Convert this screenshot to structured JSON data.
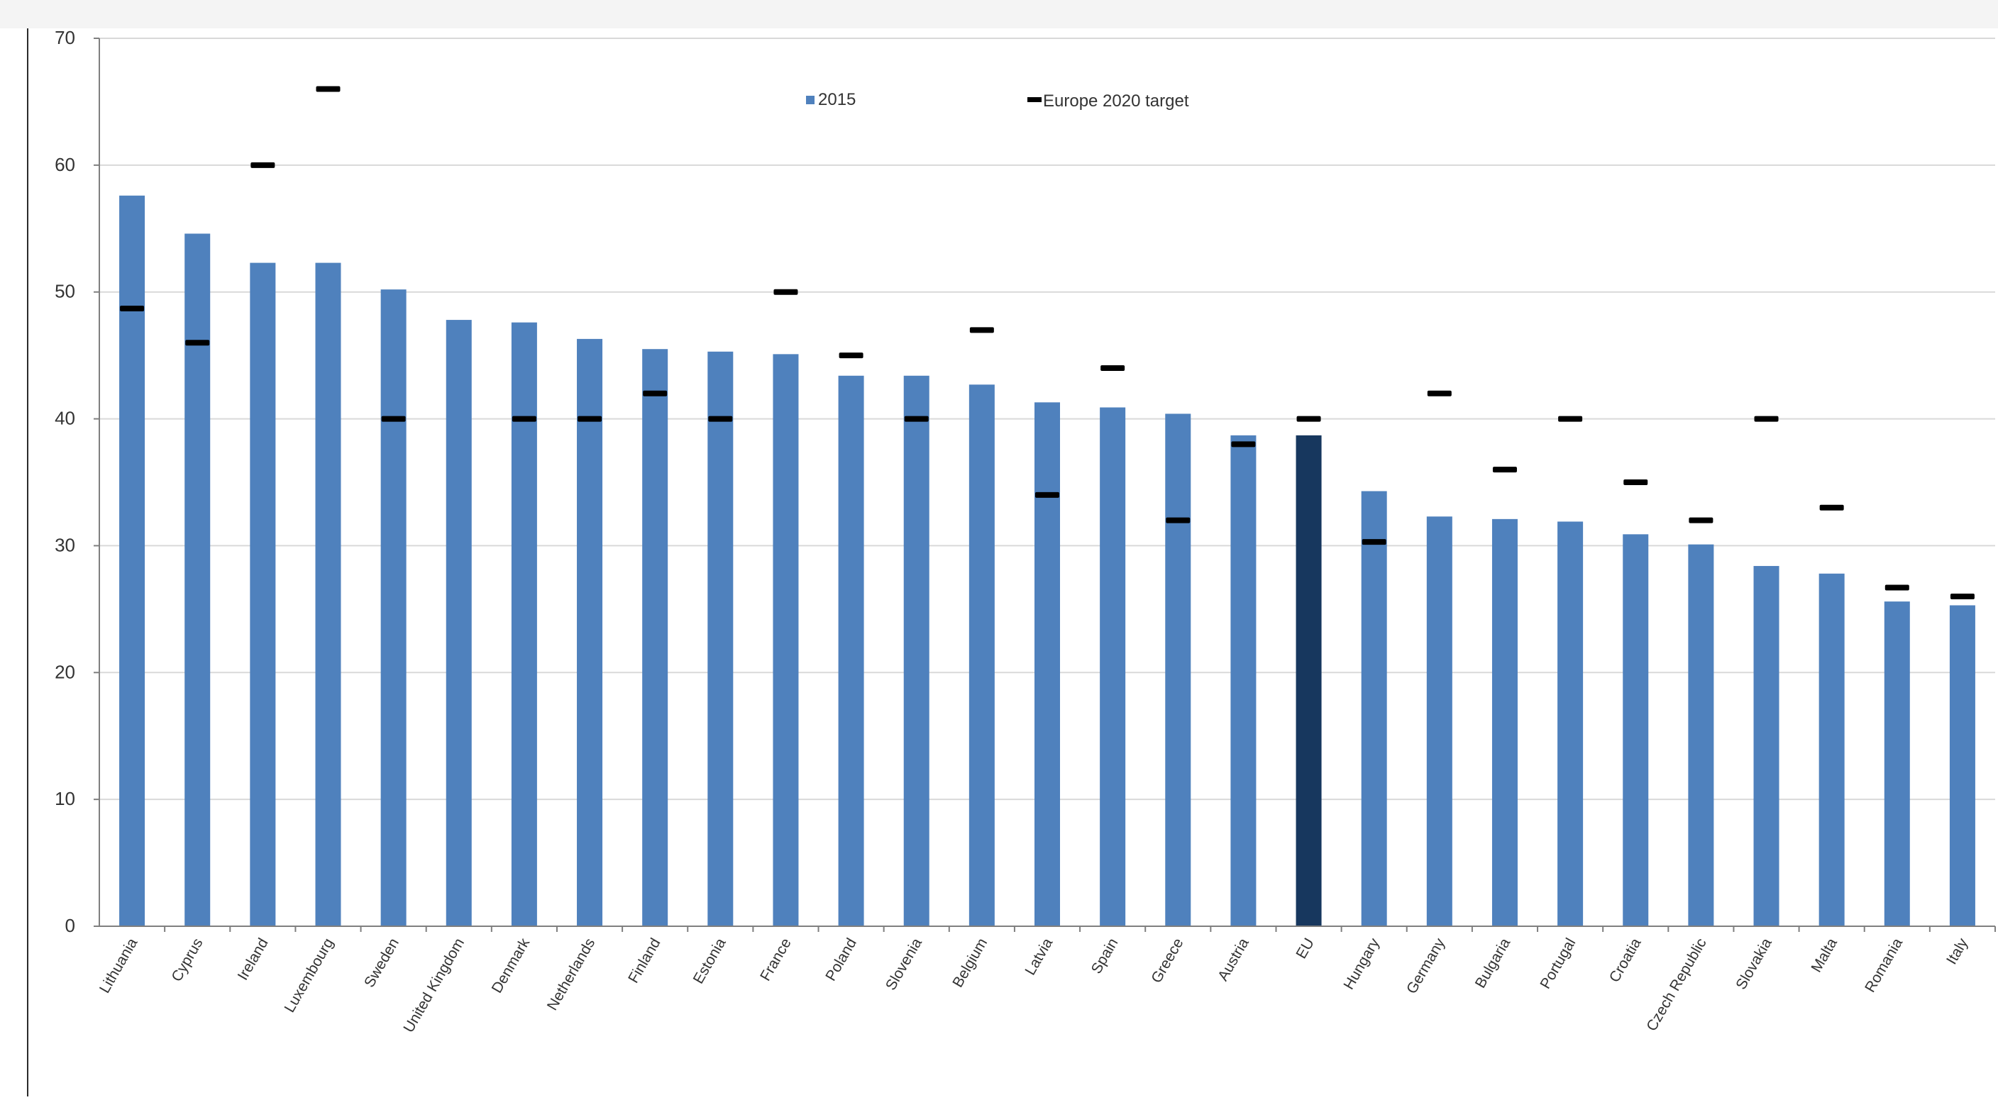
{
  "chart_data": {
    "type": "bar",
    "title": "",
    "xlabel": "",
    "ylabel": "",
    "ylim": [
      0,
      70
    ],
    "yticks": [
      "0",
      "10",
      "20",
      "30",
      "40",
      "50",
      "60",
      "70"
    ],
    "grid": true,
    "legend_position": "top-center",
    "colors": {
      "bar": "#4f81bd",
      "highlight": "#17375e",
      "target": "#000000",
      "grid": "#d9d9d9",
      "axis": "#7f7f7f"
    },
    "highlight_category": "EU",
    "categories": [
      "Lithuania",
      "Cyprus",
      "Ireland",
      "Luxembourg",
      "Sweden",
      "United Kingdom",
      "Denmark",
      "Netherlands",
      "Finland",
      "Estonia",
      "France",
      "Poland",
      "Slovenia",
      "Belgium",
      "Latvia",
      "Spain",
      "Greece",
      "Austria",
      "EU",
      "Hungary",
      "Germany",
      "Bulgaria",
      "Portugal",
      "Croatia",
      "Czech Republic",
      "Slovakia",
      "Malta",
      "Romania",
      "Italy"
    ],
    "series": [
      {
        "name": "2015",
        "kind": "bar",
        "values": [
          57.6,
          54.6,
          52.3,
          52.3,
          50.2,
          47.8,
          47.6,
          46.3,
          45.5,
          45.3,
          45.1,
          43.4,
          43.4,
          42.7,
          41.3,
          40.9,
          40.4,
          38.7,
          38.7,
          34.3,
          32.3,
          32.1,
          31.9,
          30.9,
          30.1,
          28.4,
          27.8,
          25.6,
          25.3
        ]
      },
      {
        "name": "Europe 2020 target",
        "kind": "marker",
        "values": [
          48.7,
          46,
          60,
          66,
          40,
          null,
          40,
          40,
          42,
          40,
          50,
          45,
          40,
          47,
          34,
          44,
          32,
          38,
          40,
          30.3,
          42,
          36,
          40,
          35,
          32,
          40,
          33,
          26.7,
          26
        ]
      }
    ]
  }
}
